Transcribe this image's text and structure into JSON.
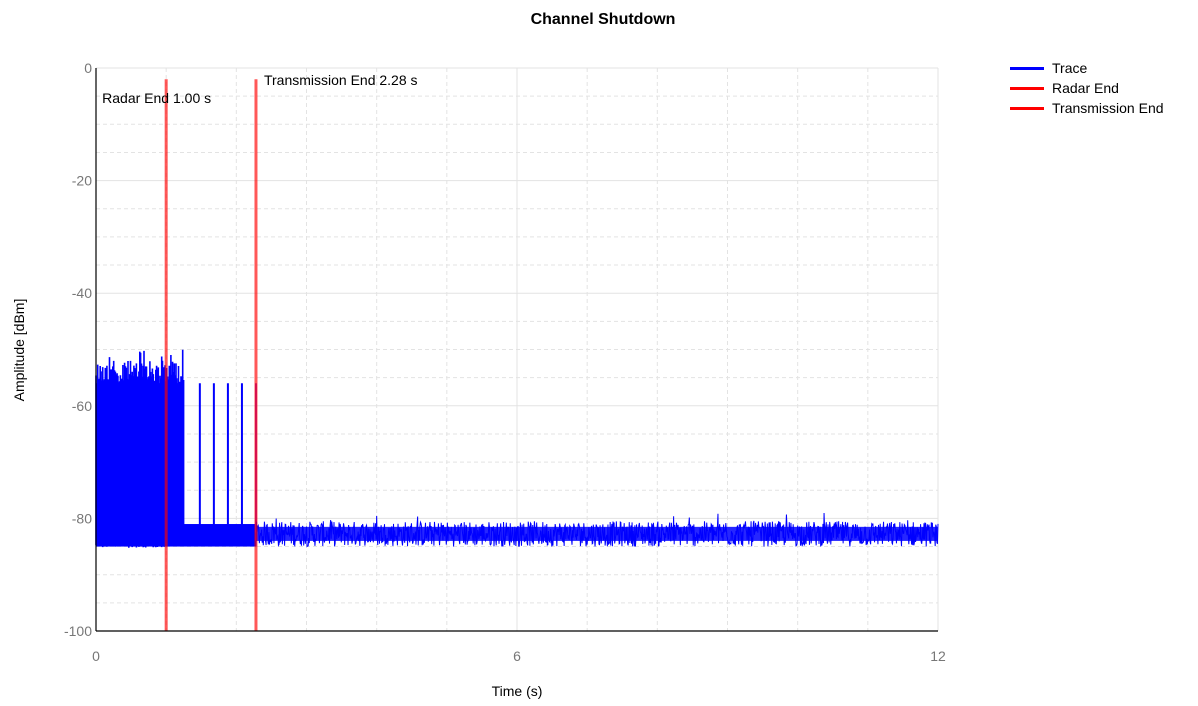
{
  "chart_data": {
    "type": "line",
    "title": "Channel Shutdown",
    "xlabel": "Time (s)",
    "ylabel": "Amplitude [dBm]",
    "xlim": [
      0,
      12
    ],
    "ylim": [
      -100,
      0
    ],
    "xticks": [
      0,
      6,
      12
    ],
    "yticks": [
      0,
      -20,
      -40,
      -60,
      -80,
      -100
    ],
    "grid": true,
    "legend_position": "top-right",
    "series": [
      {
        "name": "Trace",
        "color": "#0000ff",
        "segments": [
          {
            "x_start": 0.0,
            "x_end": 1.26,
            "peak_dbm": [
              -52,
              -50
            ],
            "floor_dbm": -84.5,
            "description_of_signal": "dense pulses"
          },
          {
            "x_start": 1.26,
            "x_end": 2.28,
            "pulse_times": [
              1.48,
              1.68,
              1.88,
              2.08,
              2.28
            ],
            "pulse_peak_dbm": -56,
            "floor_dbm": -83
          },
          {
            "x_start": 2.28,
            "x_end": 12.0,
            "noise_floor_range_dbm": [
              -85,
              -80
            ]
          }
        ]
      },
      {
        "name": "Radar End",
        "color": "#ff0000",
        "type": "vline",
        "x": 1.0
      },
      {
        "name": "Transmission End",
        "color": "#ff0000",
        "type": "vline",
        "x": 2.28
      }
    ],
    "annotations": [
      {
        "text": "Radar End 1.00 s",
        "x": 1.0
      },
      {
        "text": "Transmission End 2.28 s",
        "x": 2.28
      }
    ]
  }
}
